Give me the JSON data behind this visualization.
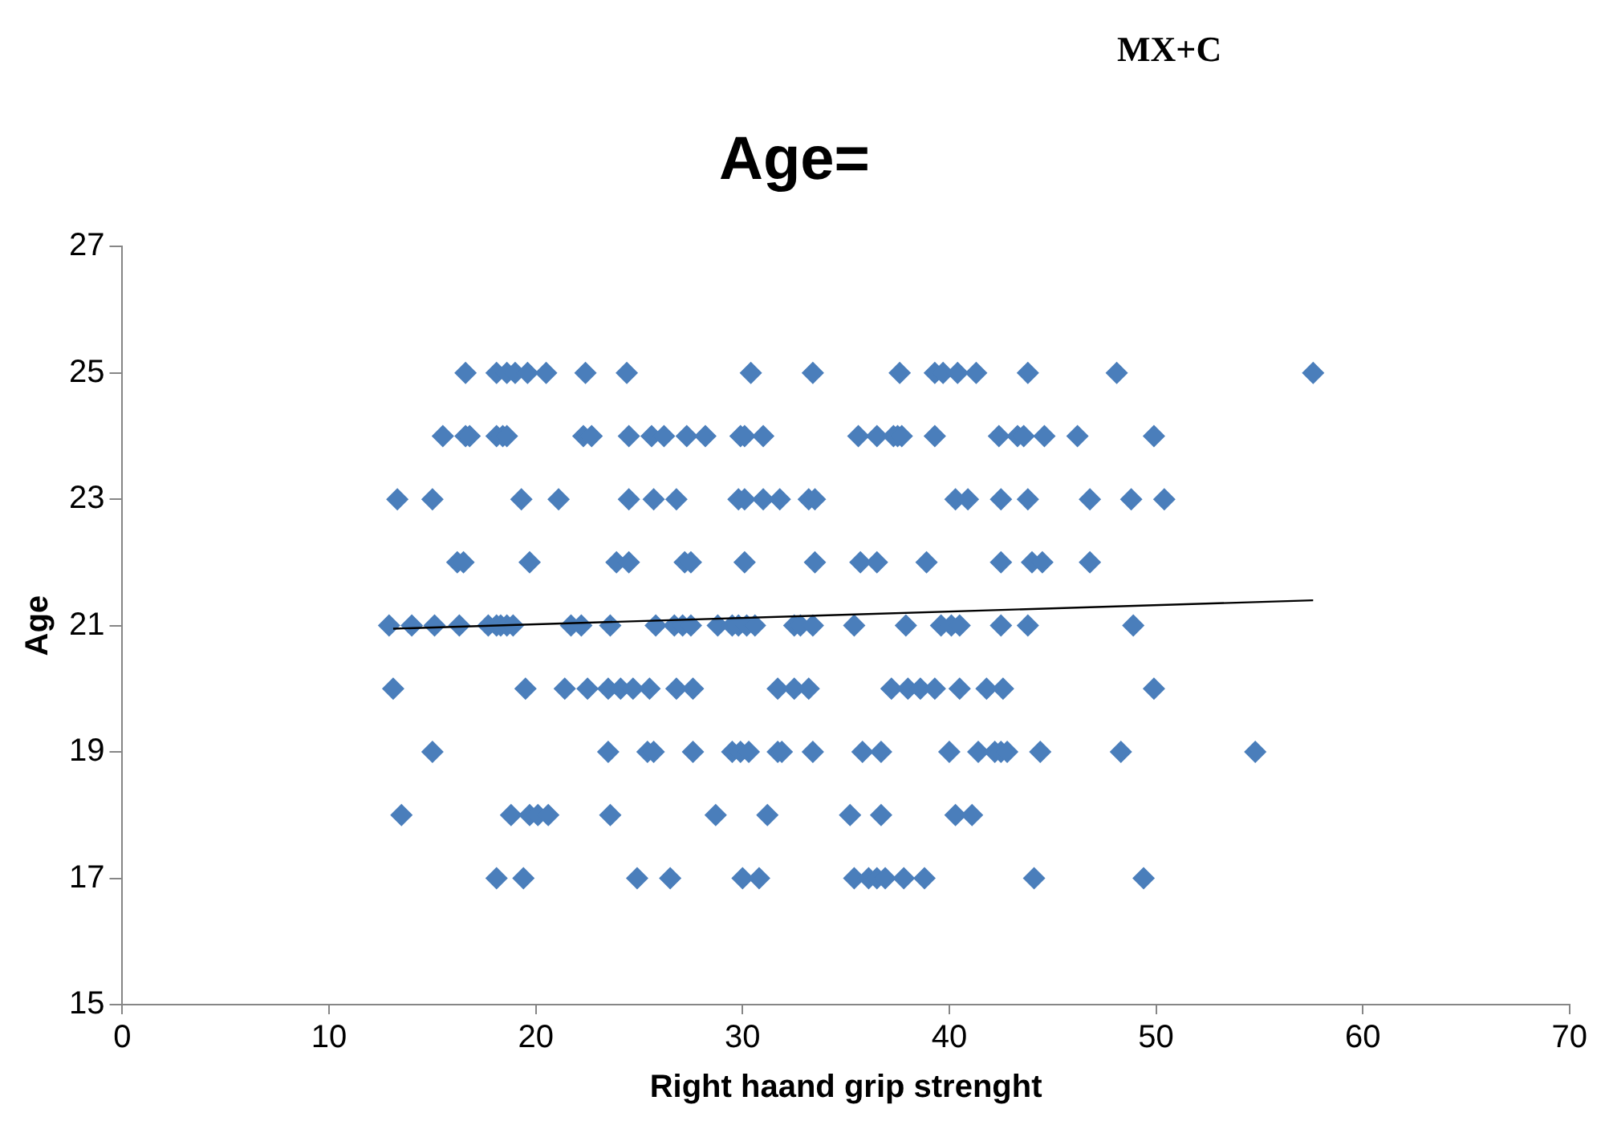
{
  "chart_data": {
    "type": "scatter",
    "title": "Age=",
    "annotations": [
      "MX+C"
    ],
    "xlabel": "Right haand grip strenght",
    "ylabel": "Age",
    "xlim": [
      0,
      70
    ],
    "xticks": [
      0,
      10,
      20,
      30,
      40,
      50,
      60,
      70
    ],
    "ylim": [
      15,
      27
    ],
    "yticks": [
      15,
      17,
      19,
      21,
      23,
      25,
      27
    ],
    "grid": false,
    "legend": false,
    "series": [
      {
        "marker": "diamond",
        "color": "#4a7ebb",
        "x": [
          16.6,
          18.1,
          18.6,
          19.0,
          19.6,
          20.5,
          22.4,
          24.4,
          30.4,
          33.4,
          37.6,
          39.3,
          39.7,
          40.4,
          41.3,
          43.8,
          48.1,
          57.6,
          15.5,
          16.6,
          16.8,
          18.1,
          18.4,
          18.6,
          22.3,
          22.7,
          24.5,
          25.6,
          26.2,
          27.3,
          28.2,
          29.9,
          30.1,
          31.0,
          35.6,
          36.5,
          37.3,
          37.5,
          37.7,
          39.3,
          42.4,
          43.3,
          43.6,
          44.6,
          46.2,
          49.9,
          13.3,
          15.0,
          19.3,
          21.1,
          24.5,
          25.7,
          26.8,
          29.8,
          30.1,
          31.0,
          31.8,
          33.2,
          33.5,
          40.3,
          40.9,
          42.5,
          43.8,
          46.8,
          48.8,
          50.4,
          16.2,
          16.5,
          19.7,
          23.9,
          24.5,
          27.2,
          27.5,
          30.1,
          33.5,
          35.7,
          36.5,
          38.9,
          42.5,
          44.0,
          44.5,
          46.8,
          12.9,
          14.0,
          15.1,
          16.3,
          17.7,
          18.1,
          18.3,
          18.6,
          18.9,
          21.7,
          22.2,
          23.6,
          25.8,
          26.7,
          27.1,
          27.5,
          28.8,
          29.5,
          29.8,
          30.2,
          30.6,
          32.5,
          32.8,
          33.4,
          35.4,
          37.9,
          39.6,
          40.1,
          40.5,
          42.5,
          43.8,
          48.9,
          13.1,
          19.5,
          21.4,
          22.5,
          23.5,
          24.1,
          24.7,
          25.5,
          26.8,
          27.6,
          31.7,
          32.5,
          33.2,
          37.2,
          38.0,
          38.6,
          39.3,
          40.5,
          41.8,
          42.6,
          49.9,
          15.0,
          23.5,
          25.4,
          25.7,
          27.6,
          29.5,
          29.9,
          30.3,
          31.7,
          31.9,
          33.4,
          35.8,
          36.7,
          40.0,
          41.4,
          42.2,
          42.5,
          42.8,
          44.4,
          48.3,
          54.8,
          13.5,
          18.8,
          19.7,
          20.1,
          20.6,
          23.6,
          28.7,
          31.2,
          35.2,
          36.7,
          40.3,
          41.1,
          18.1,
          19.4,
          24.9,
          26.5,
          30.0,
          30.8,
          35.4,
          36.1,
          36.5,
          36.9,
          37.8,
          38.8,
          44.1,
          49.4
        ],
        "values": [
          25,
          25,
          25,
          25,
          25,
          25,
          25,
          25,
          25,
          25,
          25,
          25,
          25,
          25,
          25,
          25,
          25,
          25,
          24,
          24,
          24,
          24,
          24,
          24,
          24,
          24,
          24,
          24,
          24,
          24,
          24,
          24,
          24,
          24,
          24,
          24,
          24,
          24,
          24,
          24,
          24,
          24,
          24,
          24,
          24,
          24,
          23,
          23,
          23,
          23,
          23,
          23,
          23,
          23,
          23,
          23,
          23,
          23,
          23,
          23,
          23,
          23,
          23,
          23,
          23,
          23,
          22,
          22,
          22,
          22,
          22,
          22,
          22,
          22,
          22,
          22,
          22,
          22,
          22,
          22,
          22,
          22,
          21,
          21,
          21,
          21,
          21,
          21,
          21,
          21,
          21,
          21,
          21,
          21,
          21,
          21,
          21,
          21,
          21,
          21,
          21,
          21,
          21,
          21,
          21,
          21,
          21,
          21,
          21,
          21,
          21,
          21,
          21,
          21,
          20,
          20,
          20,
          20,
          20,
          20,
          20,
          20,
          20,
          20,
          20,
          20,
          20,
          20,
          20,
          20,
          20,
          20,
          20,
          20,
          20,
          19,
          19,
          19,
          19,
          19,
          19,
          19,
          19,
          19,
          19,
          19,
          19,
          19,
          19,
          19,
          19,
          19,
          19,
          19,
          19,
          19,
          18,
          18,
          18,
          18,
          18,
          18,
          18,
          18,
          18,
          18,
          18,
          18,
          17,
          17,
          17,
          17,
          17,
          17,
          17,
          17,
          17,
          17,
          17,
          17,
          17,
          17
        ]
      },
      {
        "type": "line",
        "marker": "none",
        "color": "#000000",
        "x": [
          13.1,
          57.6
        ],
        "values": [
          20.95,
          21.4
        ]
      }
    ]
  }
}
